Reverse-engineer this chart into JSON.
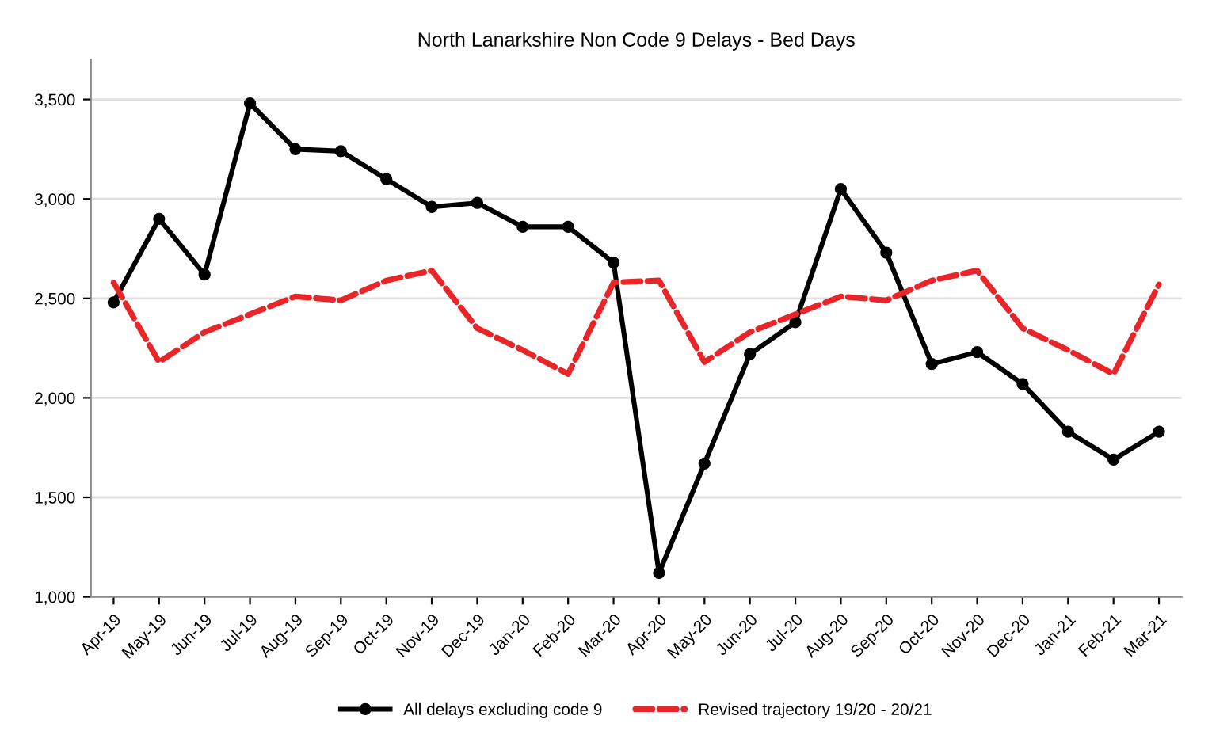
{
  "chart_data": {
    "type": "line",
    "title": "North Lanarkshire Non Code 9 Delays - Bed Days",
    "categories": [
      "Apr-19",
      "May-19",
      "Jun-19",
      "Jul-19",
      "Aug-19",
      "Sep-19",
      "Oct-19",
      "Nov-19",
      "Dec-19",
      "Jan-20",
      "Feb-20",
      "Mar-20",
      "Apr-20",
      "May-20",
      "Jun-20",
      "Jul-20",
      "Aug-20",
      "Sep-20",
      "Oct-20",
      "Nov-20",
      "Dec-20",
      "Jan-21",
      "Feb-21",
      "Mar-21"
    ],
    "series": [
      {
        "name": "All delays excluding code 9",
        "color": "#000000",
        "marker": "circle",
        "line_style": "solid",
        "values": [
          2480,
          2900,
          2620,
          3480,
          3250,
          3240,
          3100,
          2960,
          2980,
          2860,
          2860,
          2680,
          1120,
          1670,
          2220,
          2380,
          3050,
          2730,
          2170,
          2230,
          2070,
          1830,
          1690,
          1830
        ]
      },
      {
        "name": "Revised trajectory 19/20 - 20/21",
        "color": "#e8262a",
        "marker": "none",
        "line_style": "dashed",
        "values": [
          2580,
          2180,
          2330,
          2420,
          2510,
          2490,
          2590,
          2640,
          2350,
          2240,
          2120,
          2580,
          2590,
          2180,
          2330,
          2420,
          2510,
          2490,
          2590,
          2640,
          2350,
          2240,
          2120,
          2570
        ]
      }
    ],
    "ylim": [
      1000,
      3700
    ],
    "yticks": [
      {
        "value": 1000,
        "label": "1,000"
      },
      {
        "value": 1500,
        "label": "1,500"
      },
      {
        "value": 2000,
        "label": "2,000"
      },
      {
        "value": 2500,
        "label": "2,500"
      },
      {
        "value": 3000,
        "label": "3,000"
      },
      {
        "value": 3500,
        "label": "3,500"
      }
    ],
    "grid": "y",
    "legend": "bottom"
  }
}
